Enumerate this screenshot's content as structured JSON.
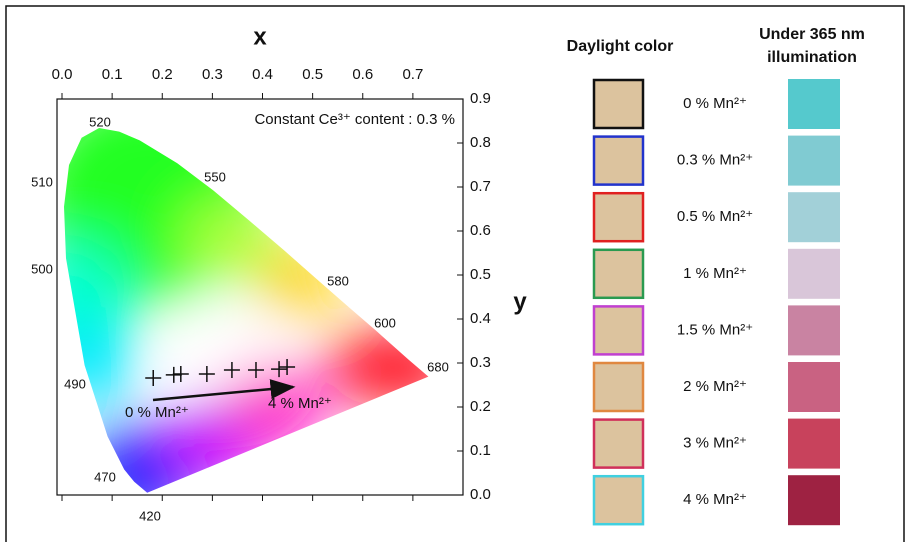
{
  "chart_data": {
    "type": "scatter",
    "x_label": "x",
    "y_label": "y",
    "annotation": "Constant Ce³⁺ content : 0.3 %",
    "arrow_labels": [
      "0 % Mn²⁺",
      "4 % Mn²⁺"
    ],
    "wavelength_labels": [
      "520",
      "550",
      "510",
      "500",
      "580",
      "600",
      "490",
      "680",
      "470",
      "420"
    ],
    "x": [
      0.182,
      0.223,
      0.237,
      0.289,
      0.339,
      0.387,
      0.433,
      0.449
    ],
    "values": [
      0.266,
      0.273,
      0.275,
      0.275,
      0.284,
      0.284,
      0.286,
      0.291
    ],
    "color": "#111111",
    "xlim": [
      -0.01,
      0.8
    ],
    "ylim": [
      0,
      0.9
    ],
    "xticks": [
      {
        "value": 0,
        "label": "0.0"
      },
      0.1,
      0.2,
      0.3,
      0.4,
      0.5,
      0.6,
      0.7
    ],
    "yticks": [
      {
        "value": 0,
        "label": "0.0"
      },
      0.1,
      0.2,
      0.3,
      0.4,
      0.5,
      0.6,
      0.7,
      0.8,
      0.9
    ]
  },
  "table": {
    "headers": [
      "Daylight color",
      [
        "Under 365 nm",
        "illumination"
      ]
    ],
    "daylight_color": "#dcc39e",
    "rows": [
      {
        "label": "0 % Mn²⁺",
        "border": "#111111",
        "uv": "#55c9cd"
      },
      {
        "label": "0.3 % Mn²⁺",
        "border": "#2233cc",
        "uv": "#80cbd2"
      },
      {
        "label": "0.5 % Mn²⁺",
        "border": "#e02020",
        "uv": "#a2d0d8"
      },
      {
        "label": "1 % Mn²⁺",
        "border": "#2a9a50",
        "uv": "#d9c6d9"
      },
      {
        "label": "1.5 % Mn²⁺",
        "border": "#c040d0",
        "uv": "#c983a2"
      },
      {
        "label": "2 % Mn²⁺",
        "border": "#e08840",
        "uv": "#c96282"
      },
      {
        "label": "3 % Mn²⁺",
        "border": "#d0305a",
        "uv": "#c8425c"
      },
      {
        "label": "4 % Mn²⁺",
        "border": "#40d0e0",
        "uv": "#9e2242"
      }
    ]
  }
}
